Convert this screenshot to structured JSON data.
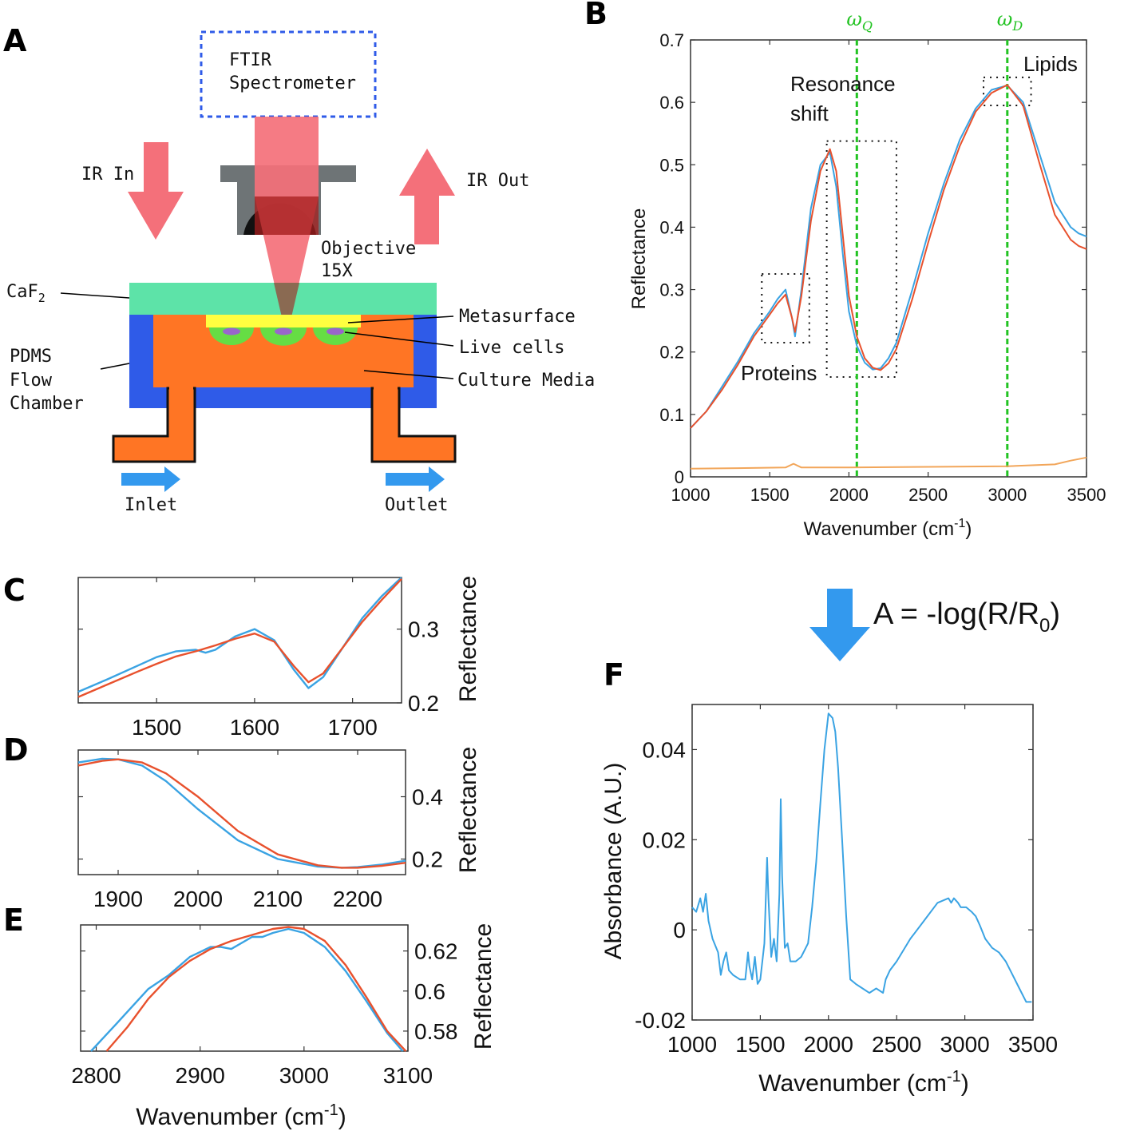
{
  "panels": {
    "A": "A",
    "B": "B",
    "C": "C",
    "D": "D",
    "E": "E",
    "F": "F"
  },
  "colors": {
    "blue_series": "#3aa3e3",
    "red_series": "#e8512d",
    "orange_series": "#f2a65a",
    "green_marker": "#22c322",
    "ir_pink": "#f4707a",
    "caf2": "#5de3a8",
    "pdms": "#2f5be8",
    "media": "#ff7524",
    "metasurface": "#ffff40",
    "cells": "#66dd44",
    "nucleus": "#9966cc",
    "objective": "#6e7476",
    "arrow_blue": "#3399ee"
  },
  "schematic": {
    "ftir_line1": "FTIR",
    "ftir_line2": "Spectrometer",
    "ir_in": "IR In",
    "ir_out": "IR Out",
    "objective_line1": "Objective",
    "objective_line2": "15X",
    "caf2": "CaF",
    "caf2_sub": "2",
    "pdms_line1": "PDMS",
    "pdms_line2": "Flow",
    "pdms_line3": "Chamber",
    "metasurface": "Metasurface",
    "live_cells": "Live cells",
    "culture_media": "Culture Media",
    "inlet": "Inlet",
    "outlet": "Outlet"
  },
  "equation": {
    "text": "A = -log(R/R",
    "sub": "0",
    "close": ")"
  },
  "chart_data": [
    {
      "panel": "B",
      "type": "line",
      "xlabel": "Wavenumber (cm",
      "xlabel_sup": "-1",
      "xlabel_close": ")",
      "ylabel": "Reflectance",
      "xlim": [
        1000,
        3500
      ],
      "ylim": [
        0,
        0.7
      ],
      "xticks": [
        1000,
        1500,
        2000,
        2500,
        3000,
        3500
      ],
      "yticks": [
        0,
        0.1,
        0.2,
        0.3,
        0.4,
        0.5,
        0.6,
        0.7
      ],
      "ytick_labels": [
        "0",
        "0.1",
        "0.2",
        "0.3",
        "0.4",
        "0.5",
        "0.6",
        "0.7"
      ],
      "vlines": [
        {
          "x": 2050,
          "label": "ω",
          "sub": "Q"
        },
        {
          "x": 3000,
          "label": "ω",
          "sub": "D"
        }
      ],
      "annotations": {
        "resonance_line1": "Resonance",
        "resonance_line2": "shift",
        "proteins": "Proteins",
        "lipids": "Lipids"
      },
      "boxes": [
        {
          "x": [
            1450,
            1750
          ],
          "y": [
            0.215,
            0.325
          ]
        },
        {
          "x": [
            1860,
            2300
          ],
          "y": [
            0.16,
            0.538
          ]
        },
        {
          "x": [
            2850,
            3150
          ],
          "y": [
            0.595,
            0.64
          ]
        }
      ],
      "series": [
        {
          "name": "blue",
          "color": "#3aa3e3",
          "x": [
            1000,
            1100,
            1200,
            1300,
            1400,
            1500,
            1550,
            1600,
            1640,
            1660,
            1700,
            1760,
            1820,
            1880,
            1920,
            1960,
            2000,
            2050,
            2100,
            2150,
            2200,
            2250,
            2300,
            2400,
            2500,
            2600,
            2700,
            2800,
            2900,
            3000,
            3100,
            3200,
            3300,
            3400,
            3450,
            3500
          ],
          "y": [
            0.078,
            0.105,
            0.145,
            0.185,
            0.23,
            0.265,
            0.285,
            0.3,
            0.255,
            0.225,
            0.3,
            0.43,
            0.5,
            0.52,
            0.465,
            0.36,
            0.265,
            0.21,
            0.183,
            0.172,
            0.174,
            0.19,
            0.215,
            0.3,
            0.39,
            0.47,
            0.54,
            0.59,
            0.62,
            0.627,
            0.6,
            0.52,
            0.44,
            0.4,
            0.39,
            0.385
          ]
        },
        {
          "name": "red",
          "color": "#e8512d",
          "x": [
            1000,
            1100,
            1200,
            1300,
            1400,
            1500,
            1550,
            1600,
            1640,
            1660,
            1700,
            1760,
            1820,
            1880,
            1920,
            1960,
            2000,
            2050,
            2100,
            2150,
            2200,
            2250,
            2300,
            2400,
            2500,
            2600,
            2700,
            2800,
            2900,
            3000,
            3100,
            3200,
            3300,
            3400,
            3450,
            3500
          ],
          "y": [
            0.078,
            0.105,
            0.14,
            0.18,
            0.225,
            0.26,
            0.278,
            0.292,
            0.255,
            0.232,
            0.29,
            0.41,
            0.49,
            0.525,
            0.49,
            0.39,
            0.29,
            0.225,
            0.19,
            0.175,
            0.171,
            0.182,
            0.205,
            0.285,
            0.375,
            0.46,
            0.53,
            0.585,
            0.615,
            0.628,
            0.595,
            0.505,
            0.42,
            0.38,
            0.37,
            0.365
          ]
        },
        {
          "name": "orange",
          "color": "#f2a65a",
          "x": [
            1000,
            1300,
            1600,
            1650,
            1700,
            2000,
            2500,
            3000,
            3300,
            3400,
            3500
          ],
          "y": [
            0.013,
            0.014,
            0.015,
            0.021,
            0.015,
            0.015,
            0.016,
            0.017,
            0.02,
            0.026,
            0.031
          ]
        }
      ]
    },
    {
      "panel": "C",
      "type": "line",
      "ylabel": "Reflectance",
      "xlim": [
        1420,
        1750
      ],
      "ylim": [
        0.2,
        0.37
      ],
      "xticks": [
        1500,
        1600,
        1700
      ],
      "yticks": [
        0.2,
        0.3
      ],
      "ytick_labels": [
        "0.2",
        "0.3"
      ],
      "series": [
        {
          "name": "blue",
          "color": "#3aa3e3",
          "x": [
            1420,
            1450,
            1480,
            1500,
            1520,
            1540,
            1550,
            1560,
            1580,
            1600,
            1620,
            1640,
            1655,
            1670,
            1690,
            1710,
            1730,
            1750
          ],
          "y": [
            0.215,
            0.232,
            0.25,
            0.262,
            0.27,
            0.272,
            0.268,
            0.272,
            0.29,
            0.3,
            0.285,
            0.245,
            0.22,
            0.235,
            0.275,
            0.315,
            0.345,
            0.372
          ]
        },
        {
          "name": "red",
          "color": "#e8512d",
          "x": [
            1420,
            1450,
            1480,
            1500,
            1520,
            1540,
            1560,
            1580,
            1600,
            1620,
            1640,
            1655,
            1670,
            1690,
            1710,
            1730,
            1750
          ],
          "y": [
            0.208,
            0.225,
            0.242,
            0.253,
            0.263,
            0.27,
            0.278,
            0.287,
            0.294,
            0.283,
            0.25,
            0.228,
            0.24,
            0.275,
            0.31,
            0.34,
            0.368
          ]
        }
      ]
    },
    {
      "panel": "D",
      "type": "line",
      "ylabel": "Reflectance",
      "xlim": [
        1850,
        2260
      ],
      "ylim": [
        0.15,
        0.55
      ],
      "xticks": [
        1900,
        2000,
        2100,
        2200
      ],
      "yticks": [
        0.2,
        0.4
      ],
      "ytick_labels": [
        "0.2",
        "0.4"
      ],
      "series": [
        {
          "name": "blue",
          "color": "#3aa3e3",
          "x": [
            1850,
            1880,
            1900,
            1930,
            1960,
            2000,
            2050,
            2100,
            2150,
            2180,
            2200,
            2230,
            2260
          ],
          "y": [
            0.51,
            0.522,
            0.52,
            0.5,
            0.45,
            0.36,
            0.26,
            0.2,
            0.176,
            0.172,
            0.174,
            0.182,
            0.195
          ]
        },
        {
          "name": "red",
          "color": "#e8512d",
          "x": [
            1850,
            1880,
            1900,
            1930,
            1960,
            2000,
            2050,
            2100,
            2150,
            2180,
            2200,
            2230,
            2260
          ],
          "y": [
            0.5,
            0.515,
            0.52,
            0.51,
            0.475,
            0.4,
            0.29,
            0.215,
            0.18,
            0.172,
            0.172,
            0.178,
            0.188
          ]
        }
      ]
    },
    {
      "panel": "E",
      "type": "line",
      "ylabel": "Reflectance",
      "xlim": [
        2785,
        3100
      ],
      "ylim": [
        0.57,
        0.633
      ],
      "xticks": [
        2800,
        2900,
        3000,
        3100
      ],
      "yticks": [
        0.58,
        0.6,
        0.62
      ],
      "ytick_labels": [
        "0.58",
        "0.6",
        "0.62"
      ],
      "series": [
        {
          "name": "blue",
          "color": "#3aa3e3",
          "x": [
            2795,
            2820,
            2850,
            2870,
            2890,
            2910,
            2920,
            2930,
            2950,
            2960,
            2970,
            2985,
            3000,
            3020,
            3040,
            3060,
            3080,
            3095
          ],
          "y": [
            0.57,
            0.584,
            0.601,
            0.608,
            0.617,
            0.622,
            0.622,
            0.621,
            0.627,
            0.627,
            0.629,
            0.631,
            0.629,
            0.622,
            0.61,
            0.595,
            0.579,
            0.57
          ]
        },
        {
          "name": "red",
          "color": "#e8512d",
          "x": [
            2810,
            2830,
            2850,
            2870,
            2890,
            2910,
            2930,
            2950,
            2970,
            2985,
            3000,
            3020,
            3040,
            3060,
            3080,
            3098
          ],
          "y": [
            0.57,
            0.582,
            0.596,
            0.607,
            0.615,
            0.621,
            0.625,
            0.628,
            0.631,
            0.632,
            0.631,
            0.625,
            0.613,
            0.597,
            0.58,
            0.57
          ]
        }
      ]
    },
    {
      "panel": "F",
      "type": "line",
      "xlabel": "Wavenumber (cm",
      "xlabel_sup": "-1",
      "xlabel_close": ")",
      "ylabel": "Absorbance (A.U.)",
      "xlim": [
        1000,
        3500
      ],
      "ylim": [
        -0.02,
        0.05
      ],
      "xticks": [
        1000,
        1500,
        2000,
        2500,
        3000,
        3500
      ],
      "yticks": [
        -0.02,
        0,
        0.02,
        0.04
      ],
      "ytick_labels": [
        "-0.02",
        "0",
        "0.02",
        "0.04"
      ],
      "series": [
        {
          "name": "absorbance",
          "color": "#3aa3e3",
          "x": [
            1000,
            1030,
            1060,
            1080,
            1100,
            1120,
            1150,
            1190,
            1210,
            1230,
            1250,
            1270,
            1300,
            1350,
            1390,
            1410,
            1420,
            1440,
            1460,
            1480,
            1500,
            1530,
            1550,
            1560,
            1580,
            1600,
            1620,
            1640,
            1650,
            1660,
            1680,
            1700,
            1720,
            1760,
            1800,
            1850,
            1880,
            1910,
            1940,
            1970,
            2000,
            2030,
            2050,
            2070,
            2100,
            2130,
            2160,
            2200,
            2250,
            2300,
            2350,
            2400,
            2420,
            2450,
            2500,
            2600,
            2700,
            2800,
            2880,
            2900,
            2920,
            2950,
            2970,
            2990,
            3010,
            3050,
            3080,
            3110,
            3150,
            3200,
            3250,
            3300,
            3350,
            3400,
            3450,
            3490
          ],
          "y": [
            0.005,
            0.004,
            0.007,
            0.004,
            0.008,
            0.002,
            -0.002,
            -0.005,
            -0.01,
            -0.007,
            -0.005,
            -0.009,
            -0.01,
            -0.011,
            -0.011,
            -0.005,
            -0.008,
            -0.011,
            -0.006,
            -0.012,
            -0.011,
            -0.003,
            0.016,
            0.007,
            -0.006,
            -0.002,
            -0.007,
            0.008,
            0.029,
            0.012,
            -0.004,
            -0.003,
            -0.007,
            -0.007,
            -0.006,
            -0.003,
            0.005,
            0.015,
            0.028,
            0.04,
            0.048,
            0.047,
            0.044,
            0.036,
            0.02,
            0.003,
            -0.011,
            -0.012,
            -0.013,
            -0.014,
            -0.013,
            -0.014,
            -0.011,
            -0.009,
            -0.007,
            -0.002,
            0.002,
            0.006,
            0.007,
            0.006,
            0.007,
            0.006,
            0.005,
            0.005,
            0.005,
            0.004,
            0.003,
            0.001,
            -0.002,
            -0.004,
            -0.005,
            -0.007,
            -0.01,
            -0.013,
            -0.016,
            -0.016
          ]
        }
      ]
    }
  ]
}
